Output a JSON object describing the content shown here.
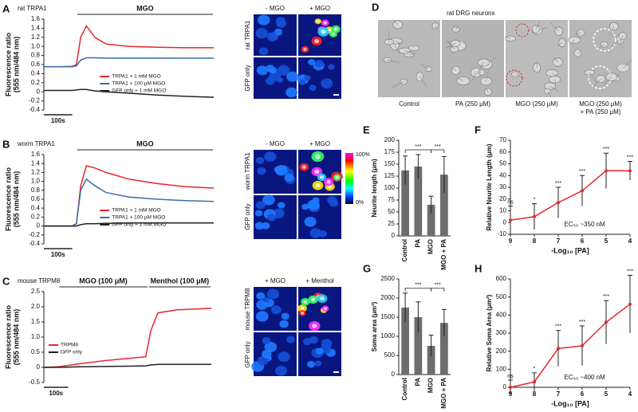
{
  "chart_data": [
    {
      "type": "line",
      "panel": "A",
      "title": "rat TRPA1",
      "ylabel": "Fluorescence ratio",
      "ylabel_units": "(555 nm/484 nm)",
      "x": [
        0,
        50,
        100,
        115,
        130,
        150,
        180,
        220,
        300,
        400,
        500,
        600
      ],
      "xlim": [
        0,
        600
      ],
      "ylim": [
        -0.4,
        1.6
      ],
      "yticks": [
        -0.4,
        -0.2,
        0,
        0.2,
        0.4,
        0.6,
        0.8,
        {
          "value": 1,
          "label": "1.0"
        },
        1.2,
        1.4,
        1.6
      ],
      "stimuli": [
        {
          "label": "MGO",
          "start": 115,
          "end": 600
        }
      ],
      "scale_bar": {
        "label": "100s",
        "length": 100
      },
      "legend": "lower right",
      "series": [
        {
          "name": "TRPA1 + 1 mM MGO",
          "color": "#e8262b",
          "values": [
            0.55,
            0.55,
            0.56,
            0.6,
            1.2,
            1.45,
            1.2,
            1.05,
            1.0,
            0.98,
            0.97,
            0.97
          ]
        },
        {
          "name": "TRPA1 + 100 μM MGO",
          "color": "#3a6ea5",
          "values": [
            0.55,
            0.55,
            0.55,
            0.57,
            0.7,
            0.75,
            0.75,
            0.74,
            0.74,
            0.74,
            0.74,
            0.74
          ]
        },
        {
          "name": "GFP only + 1 mM MGO",
          "color": "#222222",
          "values": [
            0.03,
            0.03,
            0.03,
            0.04,
            0.05,
            0.05,
            0.02,
            0,
            -0.03,
            -0.07,
            -0.1,
            -0.12
          ]
        }
      ]
    },
    {
      "type": "line",
      "panel": "B",
      "title": "worm TRPA1",
      "ylabel": "Fluorescence ratio",
      "ylabel_units": "(555 nm/484 nm)",
      "x": [
        0,
        50,
        100,
        115,
        130,
        150,
        180,
        220,
        300,
        400,
        500,
        600
      ],
      "xlim": [
        0,
        600
      ],
      "ylim": [
        -0.4,
        1.6
      ],
      "yticks": [
        -0.4,
        -0.2,
        0,
        0.2,
        0.4,
        0.6,
        0.8,
        {
          "value": 1,
          "label": "1.0"
        },
        1.2,
        1.4,
        1.6
      ],
      "stimuli": [
        {
          "label": "MGO",
          "start": 115,
          "end": 600
        }
      ],
      "scale_bar": {
        "label": "100s",
        "length": 100
      },
      "legend": "lower right",
      "series": [
        {
          "name": "TRPA1 + 1 mM MGO",
          "color": "#e8262b",
          "values": [
            0,
            0,
            0,
            0.05,
            0.9,
            1.35,
            1.3,
            1.2,
            1.05,
            0.95,
            0.88,
            0.85
          ]
        },
        {
          "name": "TRPA1 + 100 μM MGO",
          "color": "#3a6ea5",
          "values": [
            0,
            0,
            0,
            0.05,
            0.8,
            1.05,
            0.9,
            0.75,
            0.65,
            0.6,
            0.57,
            0.55
          ]
        },
        {
          "name": "GFP only + 1 mM MGO",
          "color": "#222222",
          "values": [
            0,
            0,
            0,
            0,
            0.03,
            0.05,
            0.05,
            0.06,
            0.07,
            0.07,
            0.07,
            0.07
          ]
        }
      ]
    },
    {
      "type": "line",
      "panel": "C",
      "title": "mouse TRPM8",
      "ylabel": "Fluorescence ratio",
      "ylabel_units": "(555 nm/484 nm)",
      "x": [
        0,
        60,
        150,
        250,
        350,
        420,
        440,
        470,
        550,
        690
      ],
      "xlim": [
        0,
        700
      ],
      "ylim": [
        -0.5,
        2.5
      ],
      "yticks": [
        -0.5,
        0,
        0.5,
        {
          "value": 1,
          "label": "1.0"
        },
        1.5,
        {
          "value": 2,
          "label": "2.0"
        },
        2.5
      ],
      "stimuli": [
        {
          "label": "MGO (100 μM)",
          "start": 60,
          "end": 430
        },
        {
          "label": "Menthol (100 μM)",
          "start": 430,
          "end": 690
        }
      ],
      "scale_bar": {
        "label": "100s",
        "length": 100
      },
      "legend": "center left",
      "series": [
        {
          "name": "TRPM8",
          "color": "#e8262b",
          "values": [
            0,
            0.02,
            0.12,
            0.22,
            0.3,
            0.35,
            1.2,
            1.8,
            1.9,
            1.95
          ]
        },
        {
          "name": "GFP only",
          "color": "#222222",
          "values": [
            0,
            0,
            0.02,
            0.03,
            0.04,
            0.05,
            0.08,
            0.1,
            0.1,
            0.1
          ]
        }
      ]
    },
    {
      "type": "bar",
      "panel": "E",
      "ylabel": "Neurite length (μm)",
      "categories": [
        "Control",
        "PA",
        "MGO",
        "MGO + PA"
      ],
      "values": [
        137,
        145,
        65,
        128
      ],
      "errors": [
        30,
        25,
        18,
        38
      ],
      "color": "#6d6d6d",
      "ylim": [
        0,
        200
      ],
      "yticks": [
        0,
        25,
        50,
        75,
        100,
        125,
        150,
        175,
        200
      ],
      "significance": [
        {
          "from": 0,
          "to": 2,
          "label": "***"
        },
        {
          "from": 2,
          "to": 3,
          "label": "***"
        }
      ]
    },
    {
      "type": "line",
      "panel": "F",
      "ylabel": "Relative Neurite Length (μm)",
      "xlabel": "-Log₁₀ [PA]",
      "x": [
        9,
        8,
        7,
        6,
        5,
        4
      ],
      "xlim": [
        9,
        4
      ],
      "xticks": [
        9,
        8,
        7,
        6,
        5,
        4
      ],
      "values": [
        2,
        5,
        17,
        27,
        44,
        44
      ],
      "errors": [
        12,
        11,
        13,
        13,
        15,
        8
      ],
      "color": "#e8262b",
      "annotations": [
        "ns",
        "*",
        "***",
        "***",
        "***",
        "***"
      ],
      "ec50": "EC₅₀ ~350 nM",
      "ylim": [
        -10,
        70
      ],
      "yticks": [
        -10,
        0,
        10,
        20,
        30,
        40,
        50,
        60,
        70
      ]
    },
    {
      "type": "bar",
      "panel": "G",
      "ylabel": "Soma area (μm²)",
      "categories": [
        "Control",
        "PA",
        "MGO",
        "MGO + PA"
      ],
      "values": [
        1750,
        1500,
        750,
        1350
      ],
      "errors": [
        380,
        400,
        280,
        350
      ],
      "color": "#6d6d6d",
      "ylim": [
        0,
        2500
      ],
      "yticks": [
        0,
        500,
        1000,
        1500,
        2000,
        2500
      ],
      "significance": [
        {
          "from": 0,
          "to": 2,
          "label": "***"
        },
        {
          "from": 2,
          "to": 3,
          "label": "***"
        }
      ]
    },
    {
      "type": "line",
      "panel": "H",
      "ylabel": "Relative Soma Area (μm²)",
      "xlabel": "-Log₁₀ [PA]",
      "x": [
        9,
        8,
        7,
        6,
        5,
        4
      ],
      "xlim": [
        9,
        4
      ],
      "xticks": [
        9,
        8,
        7,
        6,
        5,
        4
      ],
      "values": [
        0,
        30,
        215,
        230,
        360,
        460
      ],
      "errors": [
        40,
        50,
        100,
        110,
        120,
        160
      ],
      "color": "#e8262b",
      "annotations": [
        "ns",
        "*",
        "***",
        "***",
        "***",
        "***"
      ],
      "ec50": "EC₅₀ ~400 nM",
      "ylim": [
        0,
        600
      ],
      "yticks": [
        0,
        100,
        200,
        300,
        400,
        500,
        600
      ]
    }
  ],
  "image_panels": [
    {
      "columns": [
        "- MGO",
        "+ MGO"
      ],
      "rows": [
        "rat TRPA1",
        "GFP only"
      ]
    },
    {
      "columns": [
        "- MGO",
        "+ MGO"
      ],
      "rows": [
        "worm TRPA1",
        "GFP only"
      ]
    },
    {
      "columns": [
        "+ MGO",
        "+ Menthol"
      ],
      "rows": [
        "mouse TRPM8",
        "GFP only"
      ]
    }
  ],
  "colorbar": {
    "max": "100%",
    "min": "0%"
  },
  "dic_panel": {
    "panel": "D",
    "title": "rat DRG neurons",
    "labels": [
      "Control",
      "PA (250 μM)",
      "MGO (250 μM)",
      "MGO (250 μM)",
      "+ PA (250 μM)"
    ]
  }
}
